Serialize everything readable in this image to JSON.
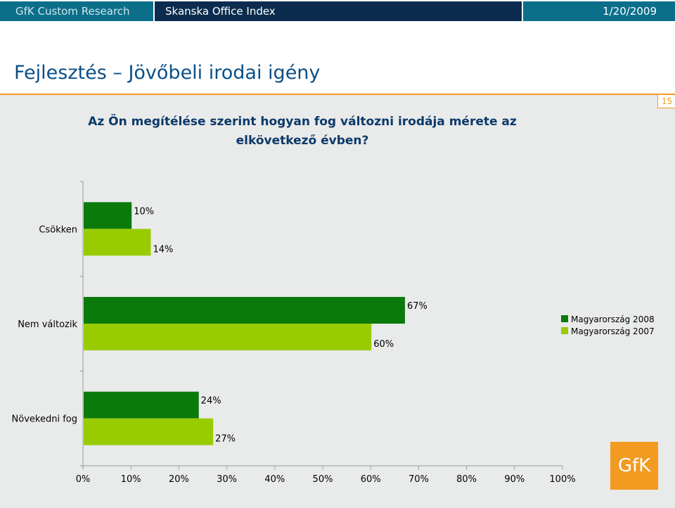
{
  "topbar": {
    "brand": "GfK Custom Research",
    "report_title": "Skanska Office Index",
    "date": "1/20/2009"
  },
  "page": {
    "title": "Fejlesztés – Jövőbeli irodai igény",
    "number": "15"
  },
  "question": {
    "line1": "Az Ön megítélése szerint hogyan fog változni irodája mérete az",
    "line2": "elkövetkező évben?"
  },
  "colors": {
    "series_2008": "#0b7a0b",
    "series_2007": "#99cc00",
    "brand_orange": "#f39a21"
  },
  "logo": {
    "text": "GfK"
  },
  "chart_data": {
    "type": "bar",
    "orientation": "horizontal",
    "categories": [
      "Csökken",
      "Nem változik",
      "Növekedni fog"
    ],
    "series": [
      {
        "name": "Magyarország 2008",
        "values": [
          10,
          67,
          24
        ]
      },
      {
        "name": "Magyarország 2007",
        "values": [
          14,
          60,
          27
        ]
      }
    ],
    "value_labels": [
      [
        "10%",
        "67%",
        "24%"
      ],
      [
        "14%",
        "60%",
        "27%"
      ]
    ],
    "xlim": [
      0,
      100
    ],
    "x_ticks": [
      0,
      10,
      20,
      30,
      40,
      50,
      60,
      70,
      80,
      90,
      100
    ],
    "x_tick_labels": [
      "0%",
      "10%",
      "20%",
      "30%",
      "40%",
      "50%",
      "60%",
      "70%",
      "80%",
      "90%",
      "100%"
    ],
    "legend_position": "right",
    "grid": false,
    "title": "Az Ön megítélése szerint hogyan fog változni irodája mérete az elkövetkező évben?"
  }
}
